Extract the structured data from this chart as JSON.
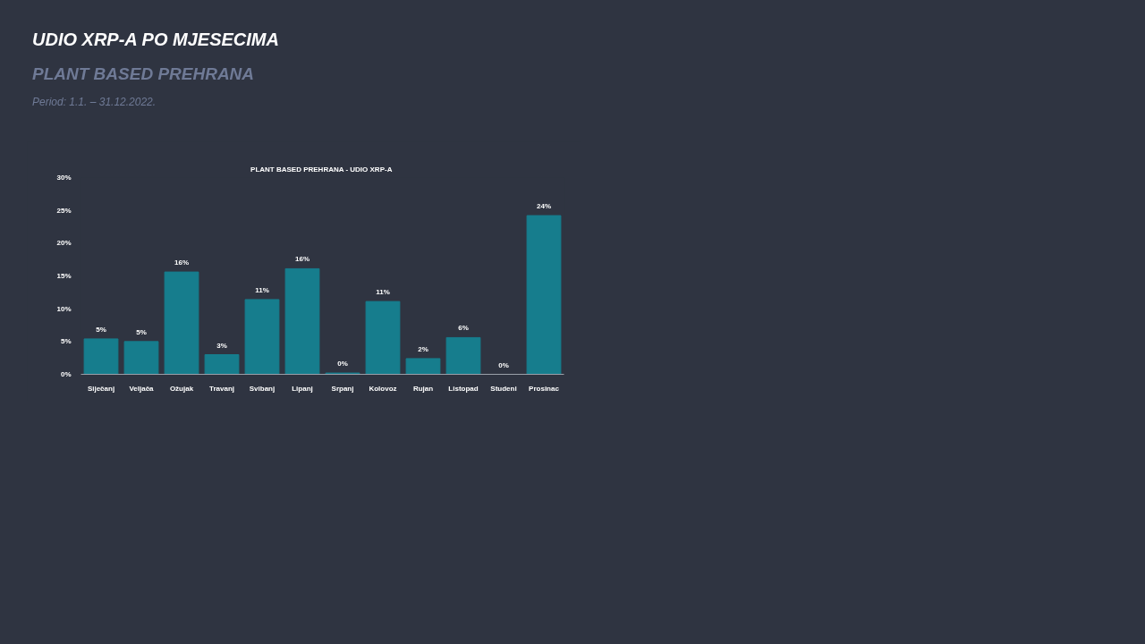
{
  "chart_data": {
    "type": "bar",
    "title": "UDIO XRP-A PO MJESECIMA",
    "subtitle": "PLANT BASED PREHRANA",
    "annotations": [
      "Period: 1.1. – 31.12.2022.",
      "PLANT BASED PREHRANA  - UDIO XRP-A"
    ],
    "categories": [
      "Siječanj",
      "Veljača",
      "Ožujak",
      "Travanj",
      "Svibanj",
      "Lipanj",
      "Srpanj",
      "Kolovoz",
      "Rujan",
      "Listopad",
      "Studeni",
      "Prosinac"
    ],
    "values": [
      5.4,
      5.0,
      15.6,
      3.0,
      11.4,
      16.1,
      0.2,
      11.1,
      2.4,
      5.6,
      0,
      24.2
    ],
    "value_labels": [
      "5%",
      "5%",
      "16%",
      "3%",
      "11%",
      "16%",
      "0%",
      "11%",
      "2%",
      "6%",
      "0%",
      "24%"
    ],
    "color": "#167d8d",
    "ylim": [
      0,
      30
    ],
    "yticks": [
      {
        "value": 0,
        "label": "0%"
      },
      {
        "value": 5,
        "label": "5%"
      },
      {
        "value": 10,
        "label": "10%"
      },
      {
        "value": 15,
        "label": "15%"
      },
      {
        "value": 20,
        "label": "20%"
      },
      {
        "value": 25,
        "label": "25%"
      },
      {
        "value": 30,
        "label": "30%"
      }
    ],
    "grid": false
  }
}
